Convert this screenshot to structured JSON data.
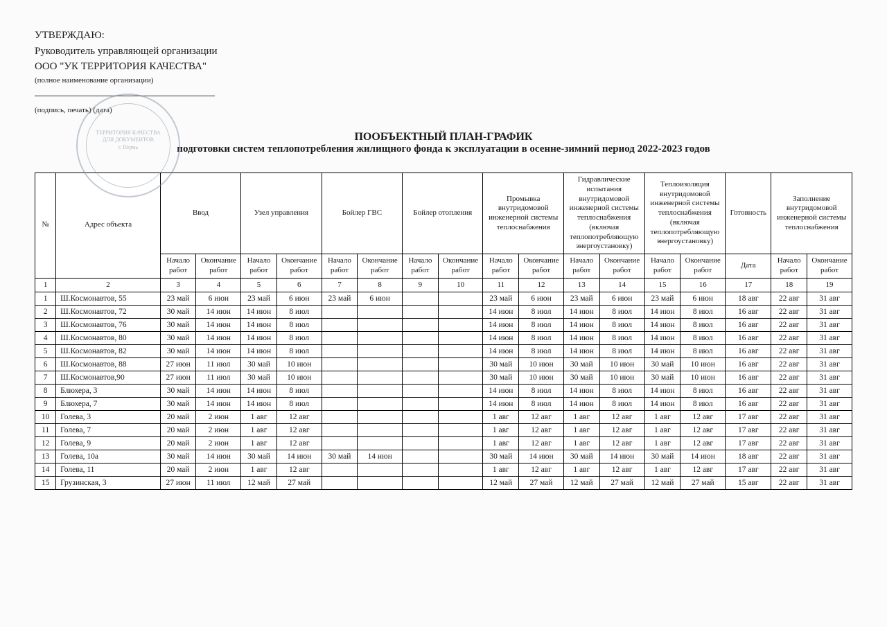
{
  "header": {
    "approve": "УТВЕРЖДАЮ:",
    "head_line": "Руководитель управляющей организации",
    "org_name": "ООО \"УК ТЕРРИТОРИЯ КАЧЕСТВА\"",
    "org_sub": "(полное наименование организации)",
    "sig_sub": "(подпись, печать)        (дата)"
  },
  "stamp": {
    "line1": "ТЕРРИТОРИЯ КАЧЕСТВА",
    "line2": "ДЛЯ ДОКУМЕНТОВ",
    "line3": "г. Пермь"
  },
  "title": {
    "t1": "ПООБЪЕКТНЫЙ ПЛАН-ГРАФИК",
    "t2": "подготовки систем теплопотребления жилищного фонда к эксплуатации в осенне-зимний период 2022-2023 годов"
  },
  "columns": {
    "num": "№",
    "addr": "Адрес объекта",
    "groups": [
      "Ввод",
      "Узел управления",
      "Бойлер ГВС",
      "Бойлер отопления",
      "Промывка внутридомовой инженерной системы теплоснабжения",
      "Гидравлические испытания внутридомовой инженерной системы теплоснабжения (включая теплопотребляющую энергоустановку)",
      "Теплоизоляция внутридомовой инженерной системы теплоснабжения (включая теплопотребляющую энергоустановку)"
    ],
    "ready": "Готовность",
    "fill": "Заполнение внутридомовой инженерной системы теплоснабжения",
    "start": "Начало работ",
    "end": "Окончание работ",
    "end2": "Окончание работ",
    "date": "Дата"
  },
  "numrow": [
    "1",
    "2",
    "3",
    "4",
    "5",
    "6",
    "7",
    "8",
    "9",
    "10",
    "11",
    "12",
    "13",
    "14",
    "15",
    "16",
    "17",
    "18",
    "19"
  ],
  "rows": [
    {
      "n": "1",
      "addr": "Ш.Космонавтов, 55",
      "c": [
        "23 май",
        "6 июн",
        "23 май",
        "6 июн",
        "23 май",
        "6 июн",
        "",
        "",
        "23 май",
        "6 июн",
        "23 май",
        "6 июн",
        "23 май",
        "6 июн",
        "18 авг",
        "22 авг",
        "31 авг"
      ]
    },
    {
      "n": "2",
      "addr": "Ш.Космонавтов, 72",
      "c": [
        "30 май",
        "14 июн",
        "14 июн",
        "8 июл",
        "",
        "",
        "",
        "",
        "14 июн",
        "8 июл",
        "14 июн",
        "8 июл",
        "14 июн",
        "8 июл",
        "16 авг",
        "22 авг",
        "31 авг"
      ]
    },
    {
      "n": "3",
      "addr": "Ш.Космонавтов, 76",
      "c": [
        "30 май",
        "14 июн",
        "14 июн",
        "8 июл",
        "",
        "",
        "",
        "",
        "14 июн",
        "8 июл",
        "14 июн",
        "8 июл",
        "14 июн",
        "8 июл",
        "16 авг",
        "22 авг",
        "31 авг"
      ]
    },
    {
      "n": "4",
      "addr": "Ш.Космонавтов, 80",
      "c": [
        "30 май",
        "14 июн",
        "14 июн",
        "8 июл",
        "",
        "",
        "",
        "",
        "14 июн",
        "8 июл",
        "14 июн",
        "8 июл",
        "14 июн",
        "8 июл",
        "16 авг",
        "22 авг",
        "31 авг"
      ]
    },
    {
      "n": "5",
      "addr": "Ш.Космонавтов, 82",
      "c": [
        "30 май",
        "14 июн",
        "14 июн",
        "8 июл",
        "",
        "",
        "",
        "",
        "14 июн",
        "8 июл",
        "14 июн",
        "8 июл",
        "14 июн",
        "8 июл",
        "16 авг",
        "22 авг",
        "31 авг"
      ]
    },
    {
      "n": "6",
      "addr": "Ш.Космонавтов, 88",
      "c": [
        "27 июн",
        "11 июл",
        "30 май",
        "10 июн",
        "",
        "",
        "",
        "",
        "30 май",
        "10 июн",
        "30 май",
        "10 июн",
        "30 май",
        "10 июн",
        "16 авг",
        "22 авг",
        "31 авг"
      ]
    },
    {
      "n": "7",
      "addr": "Ш.Космонавтов,90",
      "c": [
        "27 июн",
        "11 июл",
        "30 май",
        "10 июн",
        "",
        "",
        "",
        "",
        "30 май",
        "10 июн",
        "30 май",
        "10 июн",
        "30 май",
        "10 июн",
        "16 авг",
        "22 авг",
        "31 авг"
      ]
    },
    {
      "n": "8",
      "addr": "Блюхера, 3",
      "c": [
        "30 май",
        "14 июн",
        "14 июн",
        "8 июл",
        "",
        "",
        "",
        "",
        "14 июн",
        "8 июл",
        "14 июн",
        "8 июл",
        "14 июн",
        "8 июл",
        "16 авг",
        "22 авг",
        "31 авг"
      ]
    },
    {
      "n": "9",
      "addr": "Блюхера, 7",
      "c": [
        "30 май",
        "14 июн",
        "14 июн",
        "8 июл",
        "",
        "",
        "",
        "",
        "14 июн",
        "8 июл",
        "14 июн",
        "8 июл",
        "14 июн",
        "8 июл",
        "16 авг",
        "22 авг",
        "31 авг"
      ]
    },
    {
      "n": "10",
      "addr": "Голева, 3",
      "c": [
        "20 май",
        "2 июн",
        "1 авг",
        "12 авг",
        "",
        "",
        "",
        "",
        "1 авг",
        "12 авг",
        "1 авг",
        "12 авг",
        "1 авг",
        "12 авг",
        "17 авг",
        "22 авг",
        "31 авг"
      ]
    },
    {
      "n": "11",
      "addr": "Голева, 7",
      "c": [
        "20 май",
        "2 июн",
        "1 авг",
        "12 авг",
        "",
        "",
        "",
        "",
        "1 авг",
        "12 авг",
        "1 авг",
        "12 авг",
        "1 авг",
        "12 авг",
        "17 авг",
        "22 авг",
        "31 авг"
      ]
    },
    {
      "n": "12",
      "addr": "Голева, 9",
      "c": [
        "20 май",
        "2 июн",
        "1 авг",
        "12 авг",
        "",
        "",
        "",
        "",
        "1 авг",
        "12 авг",
        "1 авг",
        "12 авг",
        "1 авг",
        "12 авг",
        "17 авг",
        "22 авг",
        "31 авг"
      ]
    },
    {
      "n": "13",
      "addr": "Голева, 10а",
      "c": [
        "30 май",
        "14 июн",
        "30 май",
        "14 июн",
        "30 май",
        "14 июн",
        "",
        "",
        "30 май",
        "14 июн",
        "30 май",
        "14 июн",
        "30 май",
        "14 июн",
        "18 авг",
        "22 авг",
        "31 авг"
      ]
    },
    {
      "n": "14",
      "addr": "Голева, 11",
      "c": [
        "20 май",
        "2 июн",
        "1 авг",
        "12 авг",
        "",
        "",
        "",
        "",
        "1 авг",
        "12 авг",
        "1 авг",
        "12 авг",
        "1 авг",
        "12 авг",
        "17 авг",
        "22 авг",
        "31 авг"
      ]
    },
    {
      "n": "15",
      "addr": "Грузинская, 3",
      "c": [
        "27 июн",
        "11 июл",
        "12 май",
        "27 май",
        "",
        "",
        "",
        "",
        "12 май",
        "27 май",
        "12 май",
        "27 май",
        "12 май",
        "27 май",
        "15 авг",
        "22 авг",
        "31 авг"
      ]
    }
  ],
  "style": {
    "background": "#fbfbfb",
    "text_color": "#1a1a1a",
    "border_color": "#000000",
    "stamp_color": "#7a8aa0",
    "font_family": "Times New Roman",
    "body_fontsize": 13,
    "table_fontsize": 11.5
  }
}
